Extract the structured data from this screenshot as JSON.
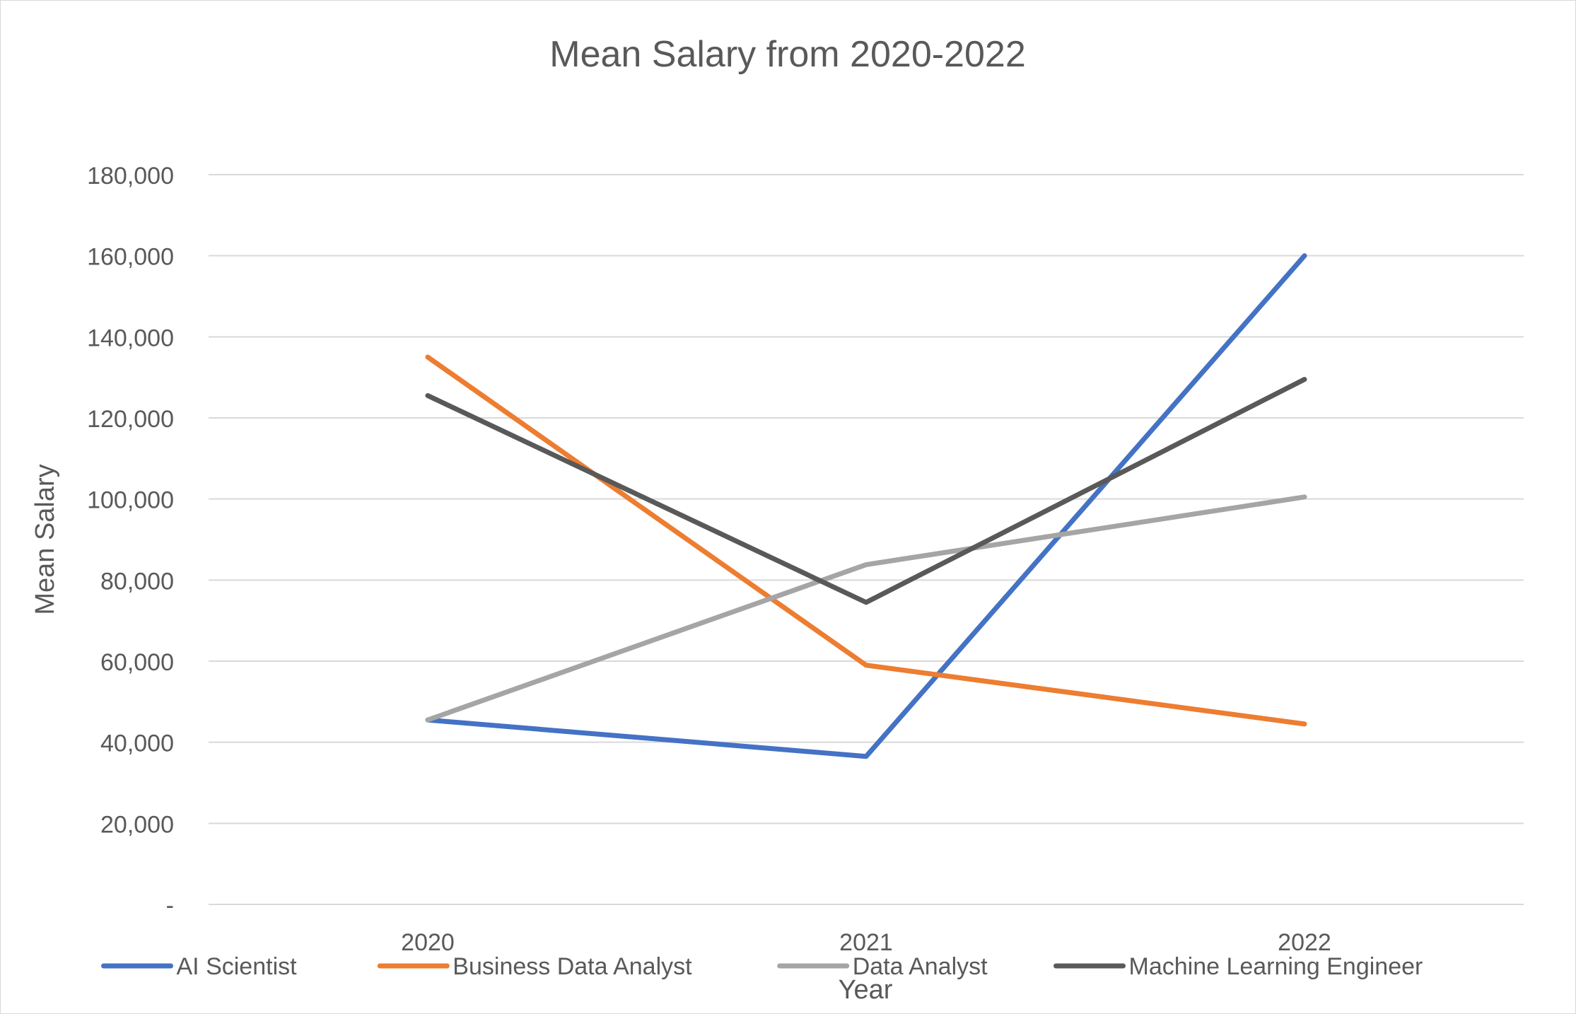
{
  "chart_data": {
    "type": "line",
    "title": "Mean Salary from 2020-2022",
    "xlabel": "Year",
    "ylabel": "Mean Salary",
    "categories": [
      "2020",
      "2021",
      "2022"
    ],
    "ylim": [
      0,
      180000
    ],
    "y_ticks": [
      {
        "value": 0,
        "label": "-"
      },
      {
        "value": 20000,
        "label": "20,000"
      },
      {
        "value": 40000,
        "label": "40,000"
      },
      {
        "value": 60000,
        "label": "60,000"
      },
      {
        "value": 80000,
        "label": "80,000"
      },
      {
        "value": 100000,
        "label": "100,000"
      },
      {
        "value": 120000,
        "label": "120,000"
      },
      {
        "value": 140000,
        "label": "140,000"
      },
      {
        "value": 160000,
        "label": "160,000"
      },
      {
        "value": 180000,
        "label": "180,000"
      }
    ],
    "grid": true,
    "legend_position": "bottom",
    "series": [
      {
        "name": "AI Scientist",
        "color": "#4472C4",
        "values": [
          45500,
          36500,
          160000
        ]
      },
      {
        "name": "Business Data Analyst",
        "color": "#ED7D31",
        "values": [
          135000,
          59000,
          44500
        ]
      },
      {
        "name": "Data Analyst",
        "color": "#A5A5A5",
        "values": [
          45500,
          83800,
          100500
        ]
      },
      {
        "name": "Machine Learning Engineer",
        "color": "#595959",
        "values": [
          125500,
          74500,
          129500
        ]
      }
    ]
  }
}
